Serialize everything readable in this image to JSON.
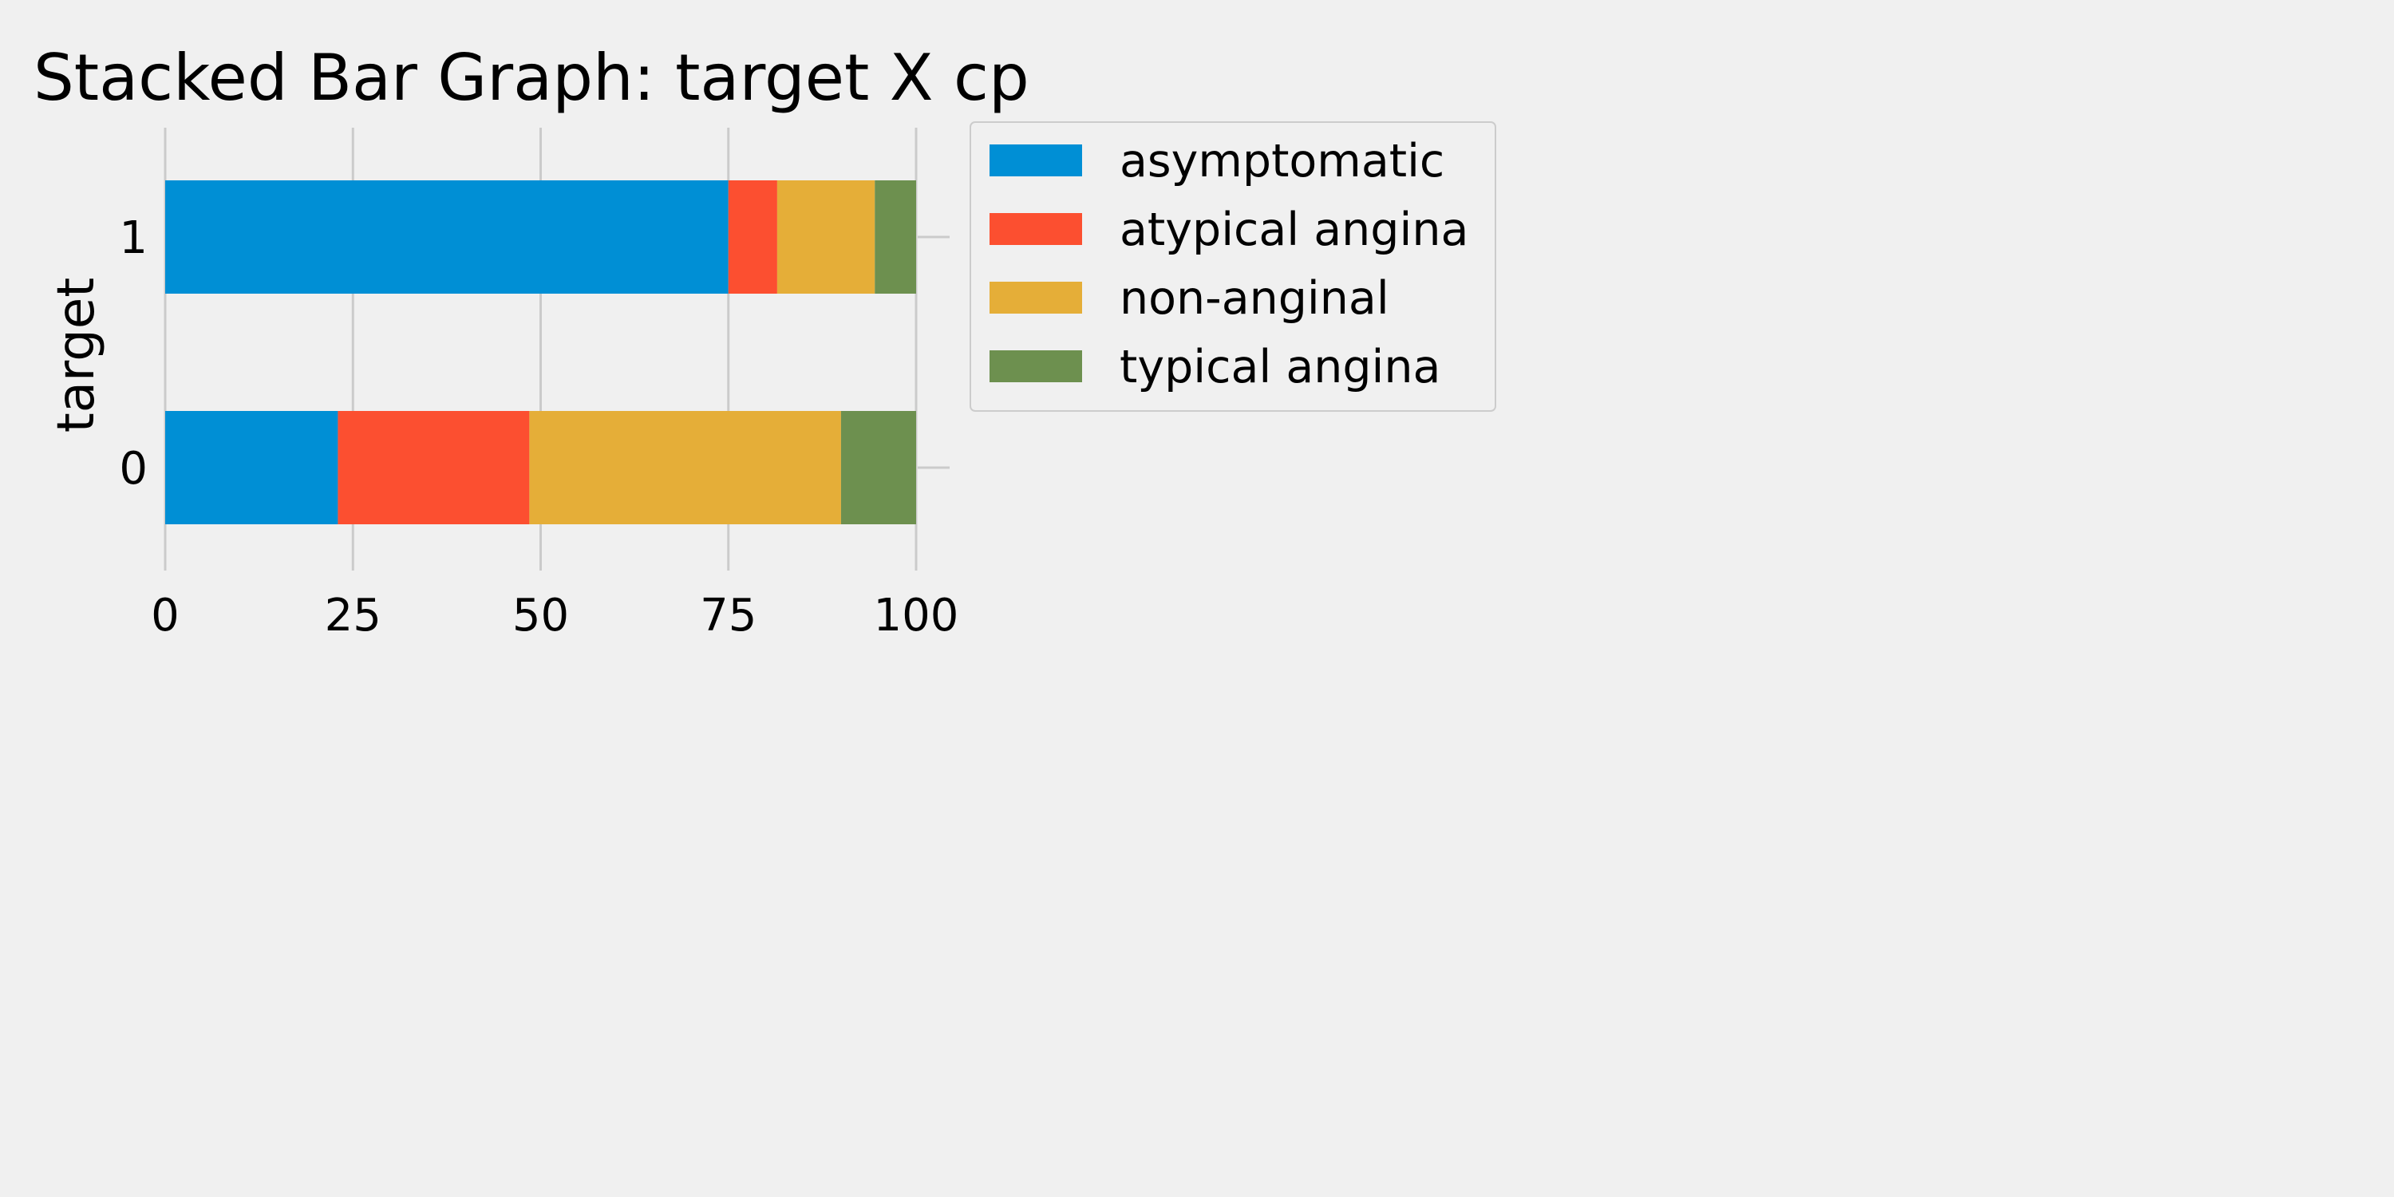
{
  "chart_data": {
    "type": "bar",
    "orientation": "horizontal",
    "stacked": true,
    "title": "Stacked Bar Graph: target X cp",
    "xlabel": "",
    "ylabel": "target",
    "categories": [
      "0",
      "1"
    ],
    "xlim": [
      0,
      100
    ],
    "x_ticks": [
      "0",
      "25",
      "50",
      "75",
      "100"
    ],
    "grid": "vertical",
    "legend_position": "outside-right",
    "series": [
      {
        "name": "asymptotic",
        "color": "#008fd5",
        "values": [
          23,
          75
        ]
      },
      {
        "name": "atypical angina",
        "color": "#fc4f30",
        "values": [
          25.5,
          6.5
        ]
      },
      {
        "name": "non-anginal",
        "color": "#e5ae38",
        "values": [
          41.5,
          13
        ]
      },
      {
        "name": "typical angina",
        "color": "#6d904f",
        "values": [
          10,
          5.5
        ]
      }
    ],
    "legend_labels": [
      "asymptomatic",
      "atypical angina",
      "non-anginal",
      "typical angina"
    ]
  }
}
